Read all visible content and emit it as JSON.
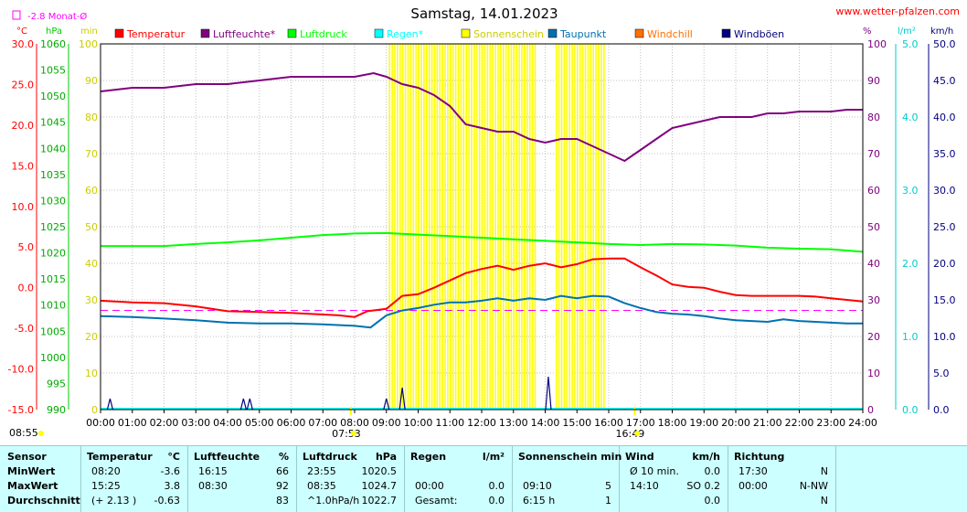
{
  "header": {
    "title": "Samstag, 14.01.2023",
    "site": "www.wetter-pfalzen.com",
    "month_avg": "-2.8 Monat-Ø"
  },
  "axis_units": {
    "temp": "°C",
    "pressure": "hPa",
    "sun": "min",
    "humidity": "%",
    "rain": "l/m²",
    "wind": "km/h"
  },
  "legend": [
    {
      "label": "Temperatur",
      "color": "#ff0000"
    },
    {
      "label": "Luftfeuchte*",
      "color": "#800080"
    },
    {
      "label": "Luftdruck",
      "color": "#00ff00"
    },
    {
      "label": "Regen*",
      "color": "#00ffff"
    },
    {
      "label": "Sonnenschein",
      "color": "#ffff00"
    },
    {
      "label": "Taupunkt",
      "color": "#0070b0"
    },
    {
      "label": "Windchill",
      "color": "#ff7000"
    },
    {
      "label": "Windböen",
      "color": "#000080"
    }
  ],
  "sun_times": {
    "sunrise": "07:53",
    "sunset": "16:49",
    "sunrise_hour": 7.883,
    "sunset_hour": 16.817
  },
  "side_time": "08:55",
  "chart_data": {
    "type": "line",
    "title": "Samstag, 14.01.2023",
    "x_ticks": [
      "00:00",
      "01:00",
      "02:00",
      "03:00",
      "04:00",
      "05:00",
      "06:00",
      "07:00",
      "08:00",
      "09:00",
      "10:00",
      "11:00",
      "12:00",
      "13:00",
      "14:00",
      "15:00",
      "16:00",
      "17:00",
      "18:00",
      "19:00",
      "20:00",
      "21:00",
      "22:00",
      "23:00",
      "24:00"
    ],
    "axes": {
      "temp": {
        "range": [
          -15,
          30
        ],
        "ticks": [
          "30.0",
          "25.0",
          "20.0",
          "15.0",
          "10.0",
          "5.0",
          "0.0",
          "-5.0",
          "-10.0",
          "-15.0"
        ]
      },
      "pressure": {
        "range": [
          990,
          1060
        ],
        "ticks": [
          "1060",
          "1055",
          "1050",
          "1045",
          "1040",
          "1035",
          "1030",
          "1025",
          "1020",
          "1015",
          "1010",
          "1005",
          "1000",
          "995",
          "990"
        ]
      },
      "sun": {
        "range": [
          0,
          100
        ],
        "ticks": [
          "100",
          "90",
          "80",
          "70",
          "60",
          "50",
          "40",
          "30",
          "20",
          "10",
          "0"
        ]
      },
      "humidity": {
        "range": [
          0,
          100
        ],
        "ticks": [
          "100",
          "90",
          "80",
          "70",
          "60",
          "50",
          "40",
          "30",
          "20",
          "10",
          "0"
        ]
      },
      "rain": {
        "range": [
          0,
          5
        ],
        "ticks": [
          "5.0",
          "4.0",
          "3.0",
          "2.0",
          "1.0",
          "0.0"
        ]
      },
      "wind": {
        "range": [
          0,
          50
        ],
        "ticks": [
          "50.0",
          "45.0",
          "40.0",
          "35.0",
          "30.0",
          "25.0",
          "20.0",
          "15.0",
          "10.0",
          "5.0",
          "0.0"
        ]
      }
    },
    "month_avg_temp": -2.8,
    "series": [
      {
        "name": "Temperatur",
        "axis": "temp",
        "color": "#ff0000",
        "x": [
          0,
          1,
          2,
          3,
          4,
          5,
          6,
          7,
          7.5,
          8,
          8.4,
          9,
          9.5,
          10,
          10.5,
          11,
          11.5,
          12,
          12.5,
          13,
          13.5,
          14,
          14.5,
          15,
          15.5,
          16,
          16.5,
          17,
          17.5,
          18,
          18.5,
          19,
          19.5,
          20,
          20.5,
          21,
          21.5,
          22,
          22.5,
          23,
          23.5,
          24
        ],
        "y": [
          -1.6,
          -1.8,
          -1.9,
          -2.3,
          -2.9,
          -3.0,
          -3.1,
          -3.3,
          -3.4,
          -3.6,
          -2.9,
          -2.6,
          -1.0,
          -0.8,
          0.0,
          0.9,
          1.8,
          2.3,
          2.7,
          2.2,
          2.7,
          3.0,
          2.5,
          2.9,
          3.5,
          3.6,
          3.6,
          2.5,
          1.5,
          0.4,
          0.1,
          0.0,
          -0.5,
          -0.9,
          -1.0,
          -1.0,
          -1.0,
          -1.0,
          -1.1,
          -1.3,
          -1.5,
          -1.7
        ]
      },
      {
        "name": "Luftfeuchte*",
        "axis": "humidity",
        "color": "#800080",
        "x": [
          0,
          0.5,
          1,
          2,
          3,
          4,
          5,
          6,
          7,
          8,
          8.6,
          9,
          9.5,
          10,
          10.5,
          11,
          11.5,
          12,
          12.5,
          13,
          13.5,
          14,
          14.5,
          15,
          15.5,
          16,
          16.5,
          17,
          17.5,
          18,
          18.5,
          19,
          19.5,
          20,
          20.5,
          21,
          21.5,
          22,
          22.5,
          23,
          23.5,
          24
        ],
        "y": [
          87,
          87.5,
          88,
          88,
          89,
          89,
          90,
          91,
          91,
          91,
          92,
          91,
          89,
          88,
          86,
          83,
          78,
          77,
          76,
          76,
          74,
          73,
          74,
          74,
          72,
          70,
          68,
          71,
          74,
          77,
          78,
          79,
          80,
          80,
          80,
          81,
          81,
          81.5,
          81.5,
          81.5,
          82,
          82
        ]
      },
      {
        "name": "Luftdruck",
        "axis": "pressure",
        "color": "#00ff00",
        "x": [
          0,
          1,
          2,
          3,
          4,
          5,
          6,
          7,
          8,
          9,
          10,
          11,
          12,
          13,
          14,
          15,
          16,
          17,
          18,
          19,
          20,
          21,
          22,
          23,
          24
        ],
        "y": [
          1021.3,
          1021.3,
          1021.3,
          1021.7,
          1022.0,
          1022.4,
          1022.9,
          1023.4,
          1023.7,
          1023.8,
          1023.5,
          1023.2,
          1022.9,
          1022.6,
          1022.3,
          1022.0,
          1021.7,
          1021.5,
          1021.7,
          1021.6,
          1021.4,
          1021.0,
          1020.8,
          1020.7,
          1020.2
        ]
      },
      {
        "name": "Taupunkt",
        "axis": "temp",
        "color": "#0070b0",
        "x": [
          0,
          1,
          2,
          3,
          4,
          5,
          6,
          7,
          8,
          8.5,
          9,
          9.5,
          10,
          10.5,
          11,
          11.5,
          12,
          12.5,
          13,
          13.5,
          14,
          14.5,
          15,
          15.5,
          16,
          16.5,
          17,
          17.5,
          18,
          18.5,
          19,
          19.5,
          20,
          20.5,
          21,
          21.5,
          22,
          22.5,
          23,
          23.5,
          24
        ],
        "y": [
          -3.5,
          -3.6,
          -3.8,
          -4.0,
          -4.3,
          -4.4,
          -4.4,
          -4.5,
          -4.7,
          -4.9,
          -3.4,
          -2.8,
          -2.5,
          -2.1,
          -1.8,
          -1.8,
          -1.6,
          -1.3,
          -1.6,
          -1.3,
          -1.5,
          -1.0,
          -1.3,
          -1.0,
          -1.1,
          -1.9,
          -2.5,
          -3.0,
          -3.2,
          -3.3,
          -3.5,
          -3.8,
          -4.0,
          -4.1,
          -4.2,
          -3.9,
          -4.1,
          -4.2,
          -4.3,
          -4.4,
          -4.4
        ]
      },
      {
        "name": "Windböen",
        "axis": "wind",
        "color": "#000080",
        "x": [
          0.3,
          4.5,
          4.7,
          9.0,
          9.5,
          14.1
        ],
        "y": [
          1.5,
          1.5,
          1.5,
          1.5,
          3.0,
          4.5
        ]
      }
    ],
    "sunshine_blocks": [
      [
        9.1,
        13.75
      ],
      [
        14.35,
        15.9
      ]
    ],
    "sunshine_value": 5
  },
  "stats": {
    "rows": [
      "Sensor",
      "MinWert",
      "MaxWert",
      "Durchschnitt"
    ],
    "columns": [
      {
        "title": "Temperatur",
        "unit": "°C",
        "values": [
          [
            "08:20",
            "-3.6"
          ],
          [
            "15:25",
            "3.8"
          ],
          [
            "(+ 2.13 )",
            "-0.63"
          ]
        ]
      },
      {
        "title": "Luftfeuchte",
        "unit": "%",
        "values": [
          [
            "16:15",
            "66"
          ],
          [
            "08:30",
            "92"
          ],
          [
            "",
            "83"
          ]
        ]
      },
      {
        "title": "Luftdruck",
        "unit": "hPa",
        "values": [
          [
            "23:55",
            "1020.5"
          ],
          [
            "08:35",
            "1024.7"
          ],
          [
            "^1.0hPa/h",
            "1022.7"
          ]
        ]
      },
      {
        "title": "Regen",
        "unit": "l/m²",
        "values": [
          [
            "",
            ""
          ],
          [
            "00:00",
            "0.0"
          ],
          [
            "Gesamt:",
            "0.0"
          ]
        ]
      },
      {
        "title": "Sonnenschein min",
        "unit": "",
        "values": [
          [
            "",
            ""
          ],
          [
            "09:10",
            "5"
          ],
          [
            "6:15 h",
            "1"
          ]
        ]
      },
      {
        "title": "Wind",
        "unit": "km/h",
        "values": [
          [
            "Ø 10 min.",
            "0.0"
          ],
          [
            "14:10",
            "SO 0.2"
          ],
          [
            "",
            "0.0"
          ]
        ]
      },
      {
        "title": "Richtung",
        "unit": "",
        "values": [
          [
            "17:30",
            "N"
          ],
          [
            "00:00",
            "N-NW"
          ],
          [
            "",
            "N"
          ]
        ]
      }
    ]
  }
}
